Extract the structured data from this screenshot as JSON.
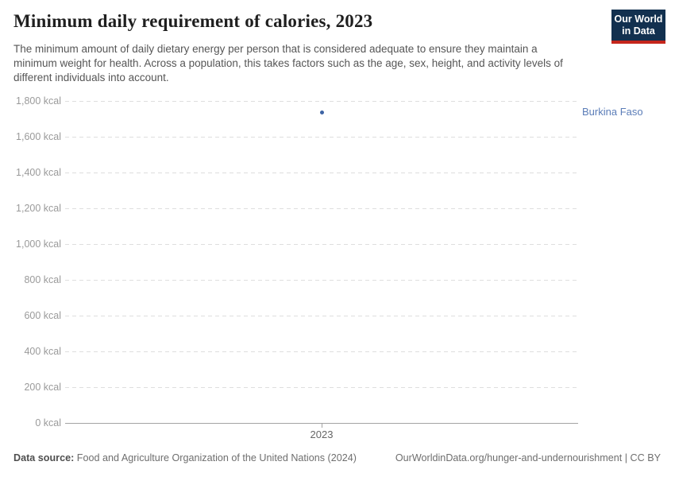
{
  "header": {
    "title": "Minimum daily requirement of calories, 2023",
    "subtitle": "The minimum amount of daily dietary energy per person that is considered adequate to ensure they maintain a minimum weight for health. Across a population, this takes factors such as the age, sex, height, and activity levels of different individuals into account.",
    "logo_line1": "Our World",
    "logo_line2": "in Data"
  },
  "chart_data": {
    "type": "scatter",
    "title": "Minimum daily requirement of calories, 2023",
    "categories": [
      2023
    ],
    "series": [
      {
        "name": "Burkina Faso",
        "values": [
          1737
        ]
      }
    ],
    "xlabel": "",
    "ylabel": "kcal",
    "ylim": [
      0,
      1800
    ],
    "yticks": [
      {
        "value": 0,
        "label": "0 kcal"
      },
      {
        "value": 200,
        "label": "200 kcal"
      },
      {
        "value": 400,
        "label": "400 kcal"
      },
      {
        "value": 600,
        "label": "600 kcal"
      },
      {
        "value": 800,
        "label": "800 kcal"
      },
      {
        "value": 1000,
        "label": "1,000 kcal"
      },
      {
        "value": 1200,
        "label": "1,200 kcal"
      },
      {
        "value": 1400,
        "label": "1,400 kcal"
      },
      {
        "value": 1600,
        "label": "1,600 kcal"
      },
      {
        "value": 1800,
        "label": "1,800 kcal"
      }
    ],
    "xticks": [
      {
        "value": 2023,
        "label": "2023"
      }
    ],
    "grid": "horizontal-dashed",
    "legend": "entity-label-right-of-plot"
  },
  "footer": {
    "source_label": "Data source:",
    "source_text": "Food and Agriculture Organization of the United Nations (2024)",
    "link_text": "OurWorldinData.org/hunger-and-undernourishment | CC BY"
  },
  "colors": {
    "entity_label": "#5b7db8",
    "point": "#3d63a4",
    "logo_navy": "#12304f",
    "logo_red": "#c5261c",
    "gridline": "#dedede",
    "axis": "#a3a3a3",
    "ytick_text": "#9a9a9a",
    "xtick_text": "#666666",
    "title_text": "#1f1f1f",
    "subtitle_text": "#565656",
    "footer_text": "#6e6e6e"
  }
}
